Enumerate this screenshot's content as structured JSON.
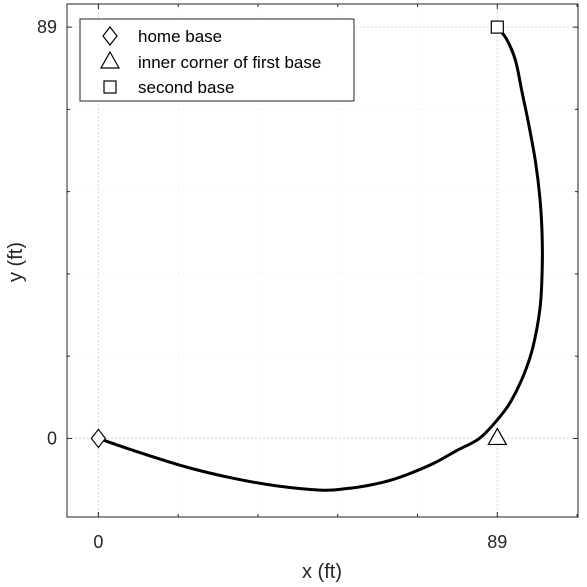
{
  "chart_data": {
    "type": "line",
    "xlabel": "x (ft)",
    "ylabel": "y (ft)",
    "xlim": [
      -7,
      107
    ],
    "ylim": [
      -17,
      94
    ],
    "xticks": [
      0,
      89
    ],
    "yticks": [
      0,
      89
    ],
    "grid": true,
    "legend_position": "top-left",
    "path": {
      "x": [
        0,
        10,
        20,
        30,
        40,
        50,
        55,
        60,
        65,
        70,
        75,
        80,
        85,
        89,
        92,
        95,
        97,
        98.5,
        99,
        99,
        98.5,
        97.5,
        96,
        94.5,
        93,
        91,
        89
      ],
      "y": [
        0,
        -3.3,
        -6.3,
        -8.6,
        -10.3,
        -11.2,
        -10.9,
        -10.2,
        -9.1,
        -7.4,
        -5.3,
        -2.6,
        0,
        4,
        8,
        14,
        20,
        28,
        36,
        44,
        52,
        60,
        68,
        75,
        82,
        86.5,
        89
      ]
    },
    "markers": [
      {
        "name": "home base",
        "shape": "diamond",
        "x": 0,
        "y": 0
      },
      {
        "name": "inner corner of first base",
        "shape": "triangle",
        "x": 89,
        "y": 0
      },
      {
        "name": "second base",
        "shape": "square",
        "x": 89,
        "y": 89
      }
    ],
    "colors": {
      "line": "#000000",
      "axis": "#262626",
      "grid": "#d9d9d9"
    }
  }
}
